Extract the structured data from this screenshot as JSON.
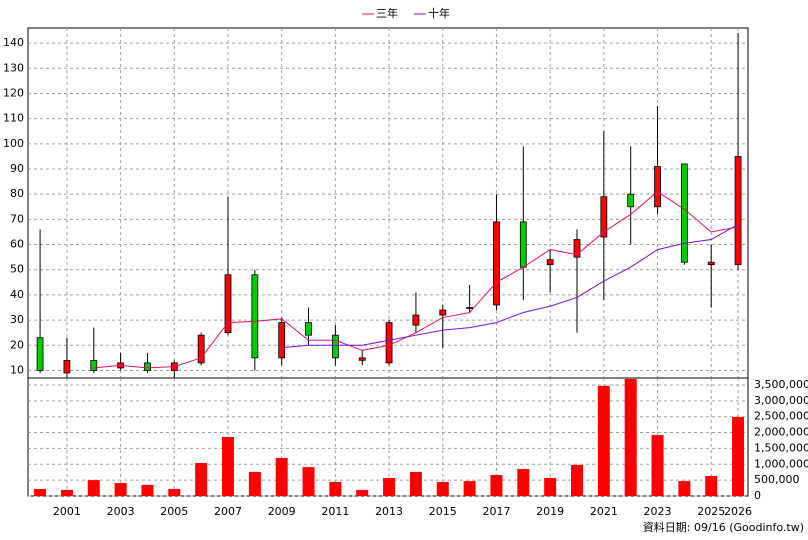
{
  "chart_data": [
    {
      "type": "candlestick",
      "x": [
        2000,
        2001,
        2002,
        2003,
        2004,
        2005,
        2006,
        2007,
        2008,
        2009,
        2010,
        2011,
        2012,
        2013,
        2014,
        2015,
        2016,
        2017,
        2018,
        2019,
        2020,
        2021,
        2022,
        2023,
        2024,
        2025,
        2026
      ],
      "open": [
        23,
        9,
        14,
        11,
        13,
        10,
        13,
        25,
        48,
        15,
        29,
        24,
        14,
        13,
        28,
        32,
        35,
        36,
        69,
        52,
        55,
        63,
        80,
        75,
        92,
        52,
        52
      ],
      "high": [
        66,
        23,
        27,
        17,
        17,
        14,
        25,
        79,
        50,
        31,
        35,
        28,
        18,
        30,
        41,
        36,
        44,
        80,
        99,
        58,
        66,
        105,
        99,
        115,
        92,
        60,
        144
      ],
      "low": [
        9,
        7,
        9,
        10,
        9,
        7,
        12,
        24,
        10,
        12,
        20,
        12,
        12,
        12,
        25,
        19,
        33,
        34,
        38,
        41,
        25,
        38,
        60,
        72,
        52,
        35,
        50
      ],
      "close": [
        10,
        14,
        10,
        13,
        10,
        13,
        24,
        48,
        15,
        29,
        24,
        15,
        15,
        29,
        32,
        34,
        35,
        69,
        51,
        54,
        62,
        79,
        75,
        91,
        53,
        53,
        95
      ],
      "up_color": "#ff0000",
      "down_color": "#00cc00",
      "series": [
        {
          "name": "三年",
          "color": "#e0106e",
          "values": [
            null,
            null,
            11,
            12,
            11,
            11.5,
            15,
            29,
            29.5,
            30.5,
            22,
            22,
            18,
            20,
            25,
            31,
            33,
            45,
            51,
            58,
            56,
            65,
            72,
            81,
            74,
            65,
            67
          ]
        },
        {
          "name": "十年",
          "color": "#7a10d8",
          "values": [
            null,
            null,
            null,
            null,
            null,
            null,
            null,
            null,
            null,
            19,
            20,
            20,
            20,
            22,
            24,
            26,
            27,
            29,
            33,
            35.5,
            39,
            45.5,
            51,
            58,
            60.5,
            62,
            68
          ]
        }
      ],
      "xlim": [
        1999.55,
        2026.37
      ],
      "ylim": [
        7,
        146
      ],
      "yticks": [
        10,
        20,
        30,
        40,
        50,
        60,
        70,
        80,
        90,
        100,
        110,
        120,
        130,
        140
      ],
      "grid": true
    },
    {
      "type": "bar",
      "x": [
        2000,
        2001,
        2002,
        2003,
        2004,
        2005,
        2006,
        2007,
        2008,
        2009,
        2010,
        2011,
        2012,
        2013,
        2014,
        2015,
        2016,
        2017,
        2018,
        2019,
        2020,
        2021,
        2022,
        2023,
        2024,
        2025,
        2026
      ],
      "values": [
        220000,
        190000,
        500000,
        410000,
        350000,
        220000,
        1040000,
        1860000,
        760000,
        1200000,
        910000,
        440000,
        190000,
        570000,
        760000,
        440000,
        470000,
        660000,
        850000,
        570000,
        980000,
        3470000,
        3690000,
        1920000,
        470000,
        630000,
        2490000
      ],
      "color": "#ff0000",
      "xlim": [
        1999.55,
        2026.37
      ],
      "xticks": [
        2001,
        2003,
        2005,
        2007,
        2009,
        2011,
        2013,
        2015,
        2017,
        2019,
        2021,
        2023,
        2025,
        2026
      ],
      "ylim": [
        0,
        3720000
      ],
      "yticks": [
        0,
        {
          "value": 500000,
          "label": "500,000"
        },
        {
          "value": 1000000,
          "label": "1,000,000"
        },
        {
          "value": 1500000,
          "label": "1,500,000"
        },
        {
          "value": 2000000,
          "label": "2,000,000"
        },
        {
          "value": 2500000,
          "label": "2,500,000"
        },
        {
          "value": 3000000,
          "label": "3,000,000"
        },
        {
          "value": 3500000,
          "label": "3,500,000"
        }
      ],
      "grid": true
    }
  ],
  "footer": "資料日期: 09/16  (Goodinfo.tw)"
}
